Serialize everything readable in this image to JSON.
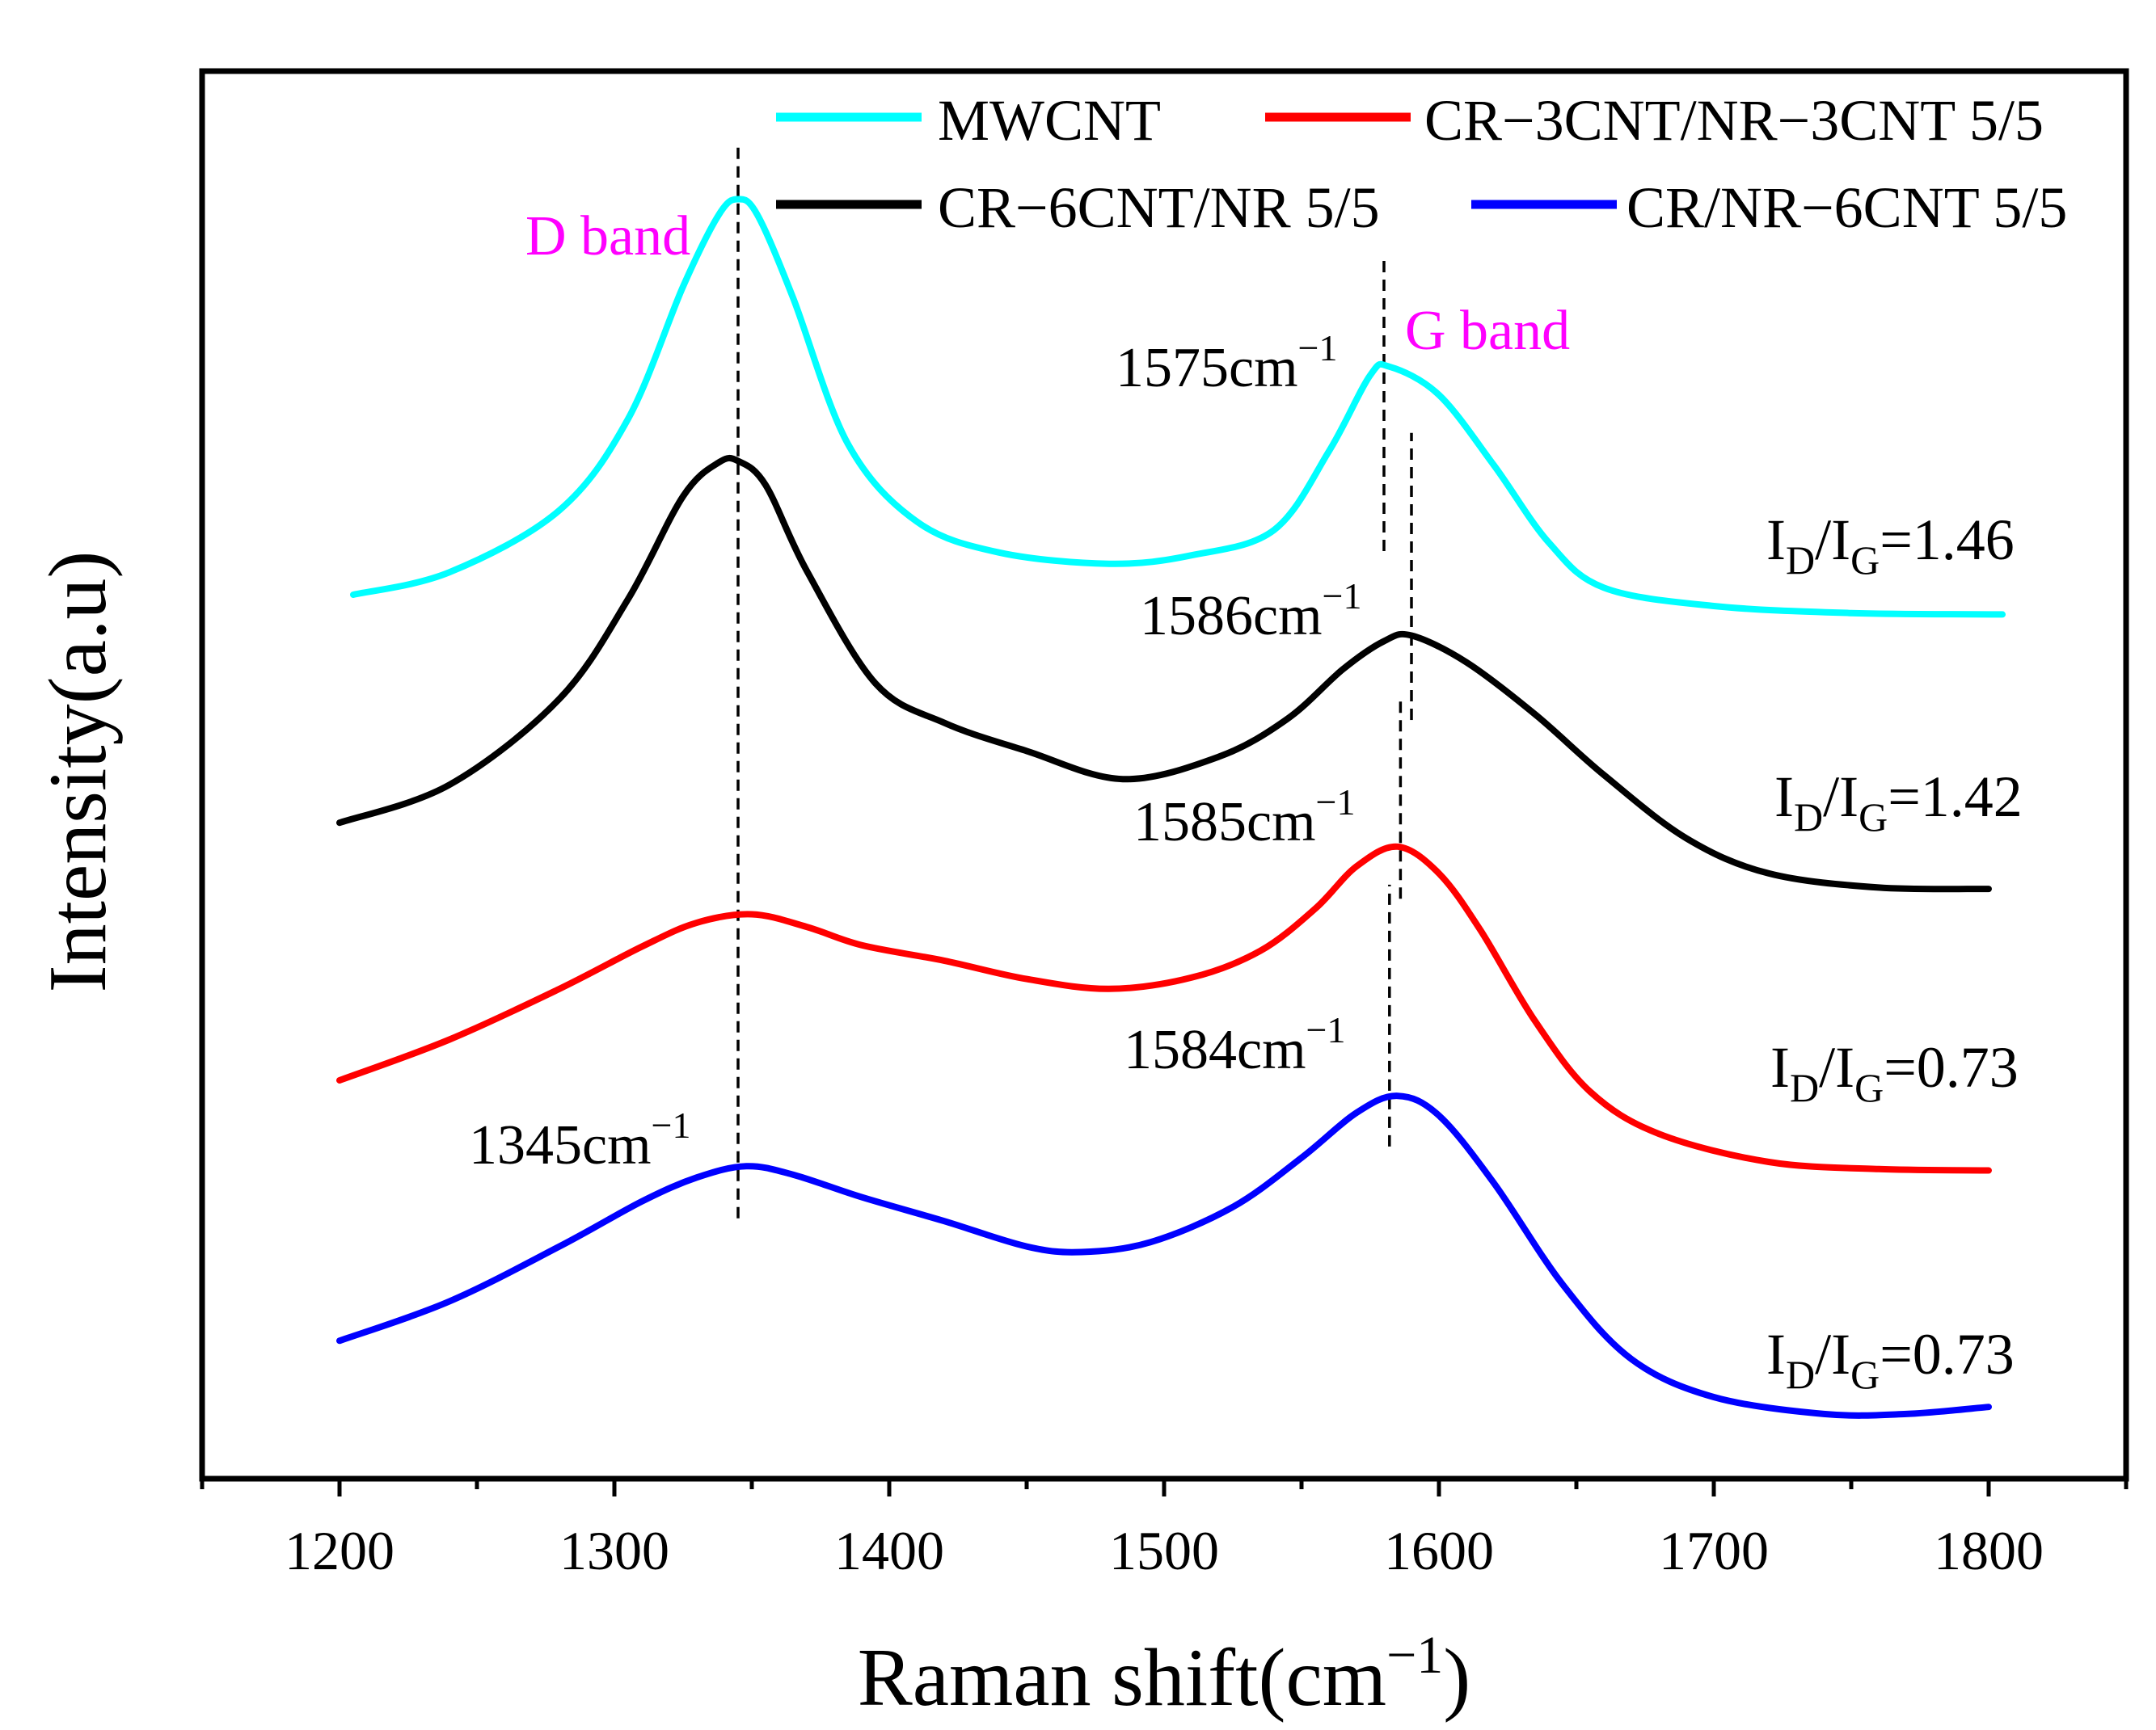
{
  "chart_data": {
    "type": "line",
    "title": "",
    "xlabel": "Raman shift(cm",
    "xlabel_sup": "−1",
    "xlabel_close": ")",
    "ylabel": "Intensity(a.u)",
    "xlim": [
      1150,
      1850
    ],
    "ylim": [
      0,
      100
    ],
    "x_ticks": [
      1200,
      1300,
      1400,
      1500,
      1600,
      1700,
      1800
    ],
    "x_minor_ticks": [
      1150,
      1250,
      1350,
      1450,
      1550,
      1650,
      1750,
      1850
    ],
    "series": [
      {
        "name": "MWCNT",
        "color": "#00FFFF",
        "points": [
          [
            1205,
            62.8
          ],
          [
            1240,
            64.4
          ],
          [
            1280,
            68.8
          ],
          [
            1305,
            75.3
          ],
          [
            1325,
            84.7
          ],
          [
            1338,
            89.8
          ],
          [
            1345,
            90.9
          ],
          [
            1352,
            89.8
          ],
          [
            1365,
            83.9
          ],
          [
            1385,
            73.5
          ],
          [
            1410,
            68.0
          ],
          [
            1440,
            65.8
          ],
          [
            1480,
            65.0
          ],
          [
            1510,
            65.6
          ],
          [
            1540,
            67.4
          ],
          [
            1560,
            73.0
          ],
          [
            1575,
            78.4
          ],
          [
            1582,
            79.0
          ],
          [
            1600,
            77.0
          ],
          [
            1620,
            72.0
          ],
          [
            1640,
            66.5
          ],
          [
            1660,
            63.3
          ],
          [
            1700,
            62.0
          ],
          [
            1750,
            61.5
          ],
          [
            1805,
            61.4
          ]
        ],
        "ratio_label": {
          "prefix": "I",
          "sub1": "D",
          "mid": "/I",
          "sub2": "G",
          "value": "=1.46"
        }
      },
      {
        "name": "CR−6CNT/NR 5/5",
        "color": "#000000",
        "points": [
          [
            1200,
            46.6
          ],
          [
            1240,
            49.3
          ],
          [
            1280,
            55.4
          ],
          [
            1305,
            62.5
          ],
          [
            1325,
            69.8
          ],
          [
            1338,
            72.2
          ],
          [
            1345,
            72.3
          ],
          [
            1355,
            70.6
          ],
          [
            1370,
            64.5
          ],
          [
            1395,
            56.5
          ],
          [
            1420,
            53.7
          ],
          [
            1450,
            51.7
          ],
          [
            1485,
            49.7
          ],
          [
            1520,
            51.3
          ],
          [
            1545,
            54.0
          ],
          [
            1565,
            57.5
          ],
          [
            1580,
            59.5
          ],
          [
            1590,
            59.9
          ],
          [
            1610,
            58.0
          ],
          [
            1635,
            54.3
          ],
          [
            1660,
            50.0
          ],
          [
            1690,
            45.5
          ],
          [
            1720,
            43.0
          ],
          [
            1760,
            42.0
          ],
          [
            1800,
            41.9
          ]
        ],
        "ratio_label": {
          "prefix": "I",
          "sub1": "D",
          "mid": "/I",
          "sub2": "G",
          "value": "=1.42"
        }
      },
      {
        "name": "CR−3CNT/NR−3CNT 5/5",
        "color": "#FF0000",
        "points": [
          [
            1200,
            28.3
          ],
          [
            1240,
            31.2
          ],
          [
            1280,
            34.8
          ],
          [
            1310,
            37.8
          ],
          [
            1330,
            39.5
          ],
          [
            1350,
            40.1
          ],
          [
            1370,
            39.2
          ],
          [
            1390,
            37.9
          ],
          [
            1420,
            36.8
          ],
          [
            1450,
            35.5
          ],
          [
            1480,
            34.8
          ],
          [
            1510,
            35.6
          ],
          [
            1535,
            37.5
          ],
          [
            1555,
            40.5
          ],
          [
            1570,
            43.5
          ],
          [
            1585,
            44.9
          ],
          [
            1600,
            43.0
          ],
          [
            1615,
            39.0
          ],
          [
            1635,
            32.5
          ],
          [
            1655,
            27.5
          ],
          [
            1680,
            24.5
          ],
          [
            1720,
            22.5
          ],
          [
            1760,
            22.0
          ],
          [
            1800,
            21.9
          ]
        ],
        "ratio_label": {
          "prefix": "I",
          "sub1": "D",
          "mid": "/I",
          "sub2": "G",
          "value": "=0.73"
        }
      },
      {
        "name": "CR/NR−6CNT 5/5",
        "color": "#0000FF",
        "points": [
          [
            1200,
            9.8
          ],
          [
            1240,
            12.6
          ],
          [
            1280,
            16.5
          ],
          [
            1310,
            19.7
          ],
          [
            1330,
            21.4
          ],
          [
            1348,
            22.2
          ],
          [
            1365,
            21.6
          ],
          [
            1390,
            20.0
          ],
          [
            1420,
            18.3
          ],
          [
            1450,
            16.5
          ],
          [
            1470,
            16.1
          ],
          [
            1495,
            16.8
          ],
          [
            1525,
            19.3
          ],
          [
            1550,
            22.8
          ],
          [
            1570,
            26.0
          ],
          [
            1585,
            27.2
          ],
          [
            1600,
            25.8
          ],
          [
            1620,
            21.0
          ],
          [
            1645,
            13.8
          ],
          [
            1670,
            8.5
          ],
          [
            1700,
            5.8
          ],
          [
            1740,
            4.6
          ],
          [
            1770,
            4.6
          ],
          [
            1800,
            5.1
          ]
        ],
        "ratio_label": {
          "prefix": "I",
          "sub1": "D",
          "mid": "/I",
          "sub2": "G",
          "value": "=0.73"
        }
      }
    ],
    "peak_labels": [
      {
        "id": "mwcnt-g",
        "text": "1575cm",
        "sup": "−1"
      },
      {
        "id": "cr6-g",
        "text": "1586cm",
        "sup": "−1"
      },
      {
        "id": "cr3-g",
        "text": "1585cm",
        "sup": "−1"
      },
      {
        "id": "nr6-g",
        "text": "1584cm",
        "sup": "−1"
      },
      {
        "id": "d-peak",
        "text": "1345cm",
        "sup": "−1"
      }
    ],
    "band_labels": [
      {
        "id": "d-band",
        "text": "D band",
        "color": "#FF00FF"
      },
      {
        "id": "g-band",
        "text": "G band",
        "color": "#FF00FF"
      }
    ],
    "reference_lines": [
      {
        "x": 1345,
        "y_from": 18.5,
        "y_to": 95.0
      },
      {
        "x": 1580,
        "y_from": 65.9,
        "y_to": 86.9
      },
      {
        "x": 1590,
        "y_from": 53.9,
        "y_to": 74.3
      },
      {
        "x": 1586,
        "y_from": 41.2,
        "y_to": 55.4
      },
      {
        "x": 1582,
        "y_from": 23.6,
        "y_to": 42.2
      }
    ],
    "legend_position": "top-right",
    "grid": false
  }
}
